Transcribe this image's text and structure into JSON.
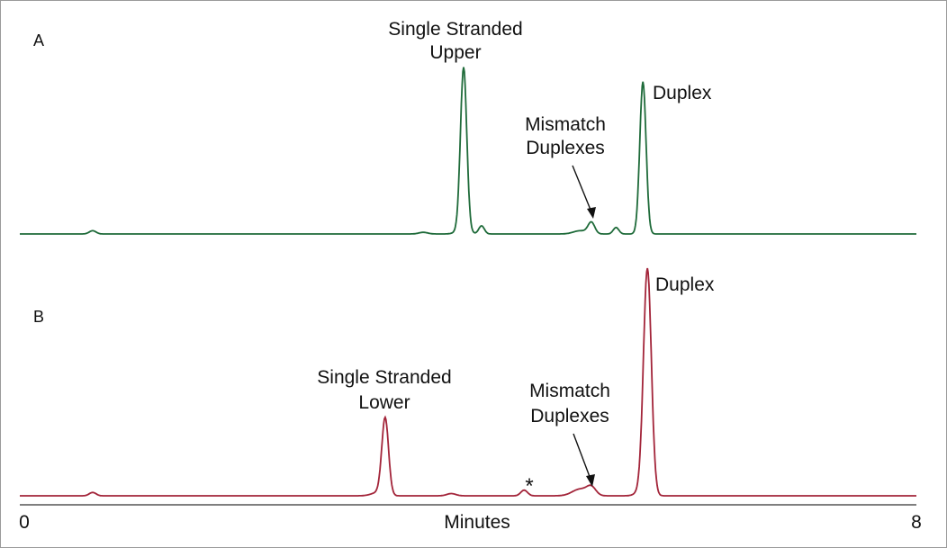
{
  "chart_data": [
    {
      "type": "line",
      "panel": "A",
      "color": "#1f6b3a",
      "xlim": [
        0,
        8
      ],
      "annotations": [
        {
          "lines": [
            "Single Stranded",
            "Upper"
          ]
        },
        {
          "lines": [
            "Mismatch",
            "Duplexes"
          ]
        },
        {
          "lines": [
            "Duplex"
          ]
        }
      ],
      "peaks": [
        {
          "x": 0.65,
          "height": 0.02,
          "width": 0.03
        },
        {
          "x": 3.6,
          "height": 0.01,
          "width": 0.04
        },
        {
          "x": 3.95,
          "height": 0.03,
          "width": 0.05
        },
        {
          "x": 3.96,
          "height": 1.0,
          "width": 0.028
        },
        {
          "x": 4.12,
          "height": 0.05,
          "width": 0.025
        },
        {
          "x": 5.0,
          "height": 0.02,
          "width": 0.06
        },
        {
          "x": 5.1,
          "height": 0.07,
          "width": 0.03
        },
        {
          "x": 5.32,
          "height": 0.04,
          "width": 0.025
        },
        {
          "x": 5.56,
          "height": 0.94,
          "width": 0.028
        }
      ]
    },
    {
      "type": "line",
      "panel": "B",
      "color": "#a3253a",
      "xlim": [
        0,
        8
      ],
      "annotations": [
        {
          "lines": [
            "Single Stranded",
            "Lower"
          ]
        },
        {
          "lines": [
            "Mismatch",
            "Duplexes"
          ]
        },
        {
          "lines": [
            "Duplex"
          ]
        },
        {
          "lines": [
            "*"
          ]
        }
      ],
      "peaks": [
        {
          "x": 0.65,
          "height": 0.015,
          "width": 0.03
        },
        {
          "x": 3.2,
          "height": 0.015,
          "width": 0.06
        },
        {
          "x": 3.26,
          "height": 0.34,
          "width": 0.03
        },
        {
          "x": 3.85,
          "height": 0.01,
          "width": 0.04
        },
        {
          "x": 4.5,
          "height": 0.025,
          "width": 0.03
        },
        {
          "x": 5.0,
          "height": 0.03,
          "width": 0.07
        },
        {
          "x": 5.1,
          "height": 0.035,
          "width": 0.04
        },
        {
          "x": 5.55,
          "height": 0.02,
          "width": 0.05
        },
        {
          "x": 5.6,
          "height": 1.0,
          "width": 0.035
        }
      ]
    }
  ],
  "x_axis": {
    "label": "Minutes",
    "min_label": "0",
    "max_label": "8",
    "range": [
      0,
      8
    ]
  }
}
